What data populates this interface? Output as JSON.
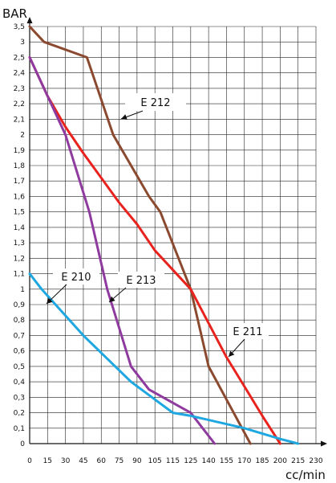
{
  "chart_data": {
    "type": "line",
    "xlabel": "cc/min",
    "ylabel": "BAR",
    "xlim": [
      0,
      230
    ],
    "ylim": [
      0,
      3.5
    ],
    "grid": true,
    "x_ticks": [
      0,
      15,
      30,
      45,
      60,
      75,
      90,
      105,
      115,
      125,
      140,
      155,
      170,
      185,
      200,
      215,
      230
    ],
    "x_tick_labels": [
      "0",
      "15",
      "30",
      "45",
      "60",
      "75",
      "90",
      "105",
      "115",
      "125",
      "140",
      "155",
      "170",
      "185",
      "200",
      "215",
      "230"
    ],
    "y_ticks": [
      0,
      0.1,
      0.2,
      0.3,
      0.4,
      0.5,
      0.6,
      0.7,
      0.8,
      0.9,
      1,
      1.1,
      1.2,
      1.3,
      1.4,
      1.5,
      1.6,
      1.7,
      1.8,
      1.9,
      2,
      2.1,
      2.2,
      2.3,
      2.4,
      2.5,
      3,
      3.5
    ],
    "y_tick_labels": [
      "0",
      "0,1",
      "0,2",
      "0,3",
      "0,4",
      "0,5",
      "0,6",
      "0,7",
      "0,8",
      "0,9",
      "1",
      "1,1",
      "1,2",
      "1,3",
      "1,4",
      "1,5",
      "1,6",
      "1,7",
      "1,8",
      "1,9",
      "2",
      "2,1",
      "2,2",
      "2,3",
      "2,4",
      "2,5",
      "3",
      "3,5"
    ],
    "series": [
      {
        "name": "E 212",
        "color": "#8B4A2F",
        "x": [
          0,
          12,
          48,
          70,
          100,
          108,
          125,
          140,
          175
        ],
        "y": [
          3.5,
          3,
          2.5,
          2,
          1.6,
          1.5,
          1,
          0.5,
          0
        ]
      },
      {
        "name": "E 211",
        "color": "#E8231E",
        "x": [
          0,
          15,
          30,
          45,
          60,
          75,
          90,
          105,
          125,
          140,
          155,
          170,
          185,
          200
        ],
        "y": [
          2.5,
          2.25,
          2.05,
          1.88,
          1.72,
          1.56,
          1.42,
          1.25,
          1.0,
          0.78,
          0.56,
          0.37,
          0.18,
          0
        ]
      },
      {
        "name": "E 213",
        "color": "#8E3A9E",
        "x": [
          0,
          30,
          50,
          65,
          85,
          100,
          125,
          145
        ],
        "y": [
          2.5,
          2,
          1.5,
          1,
          0.5,
          0.35,
          0.2,
          0
        ]
      },
      {
        "name": "E 210",
        "color": "#1EA7E0",
        "x": [
          0,
          10,
          45,
          85,
          115,
          125,
          170,
          200,
          215
        ],
        "y": [
          1.1,
          1.0,
          0.7,
          0.4,
          0.2,
          0.18,
          0.1,
          0.03,
          0
        ]
      }
    ],
    "annotations": [
      {
        "series": "E 212",
        "text": "E 212"
      },
      {
        "series": "E 211",
        "text": "E 211"
      },
      {
        "series": "E 213",
        "text": "E 213"
      },
      {
        "series": "E 210",
        "text": "E 210"
      }
    ]
  }
}
